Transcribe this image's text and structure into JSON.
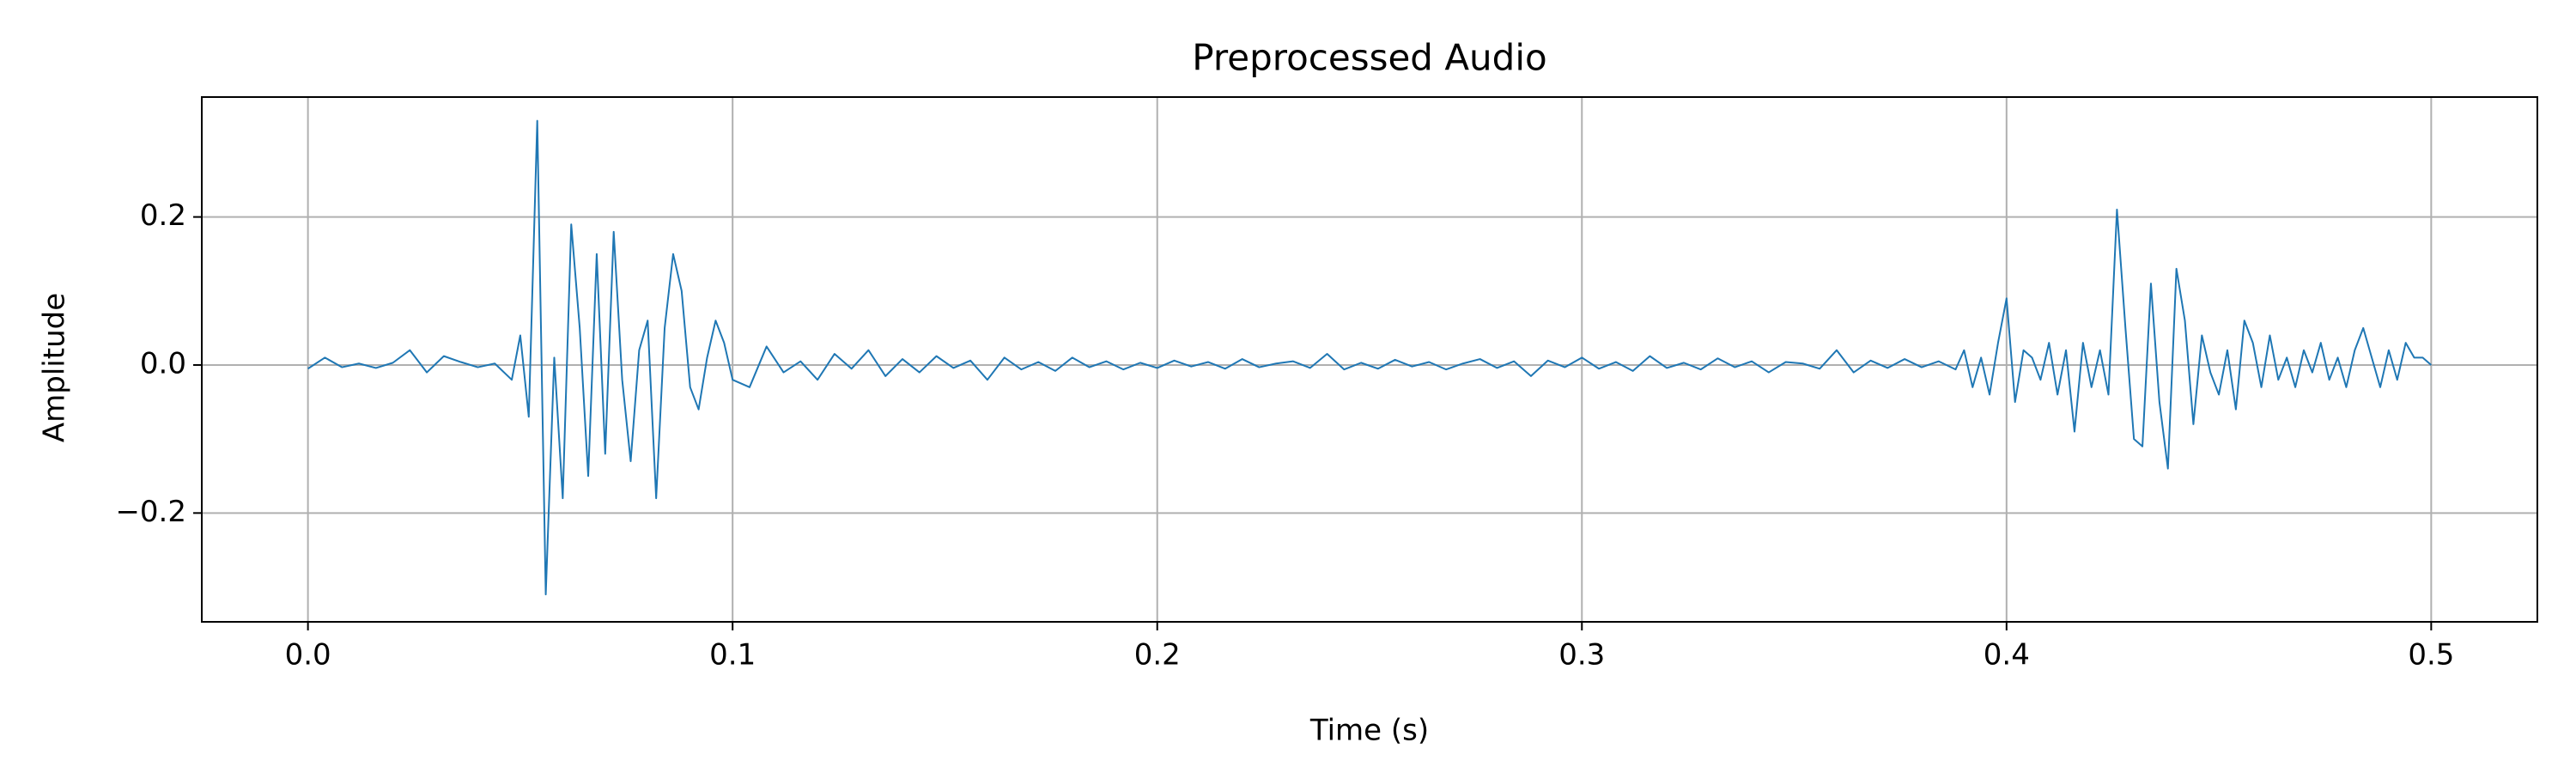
{
  "chart_data": {
    "type": "line",
    "title": "Preprocessed Audio",
    "xlabel": "Time (s)",
    "ylabel": "Amplitude",
    "xlim": [
      -0.025,
      0.525
    ],
    "ylim": [
      -0.347,
      0.362
    ],
    "xticks": [
      {
        "value": 0,
        "label": "0.0"
      },
      0.1,
      0.2,
      0.3,
      0.4,
      0.5
    ],
    "yticks": [
      {
        "value": -0.2,
        "label": "−0.2"
      },
      {
        "value": 0,
        "label": "0.0"
      },
      0.2
    ],
    "grid": true,
    "x": [
      0,
      0.004,
      0.008,
      0.012,
      0.016,
      0.02,
      0.024,
      0.028,
      0.032,
      0.036,
      0.04,
      0.044,
      0.048,
      0.05,
      0.052,
      0.054,
      0.056,
      0.058,
      0.06,
      0.062,
      0.064,
      0.066,
      0.068,
      0.07,
      0.072,
      0.074,
      0.076,
      0.078,
      0.08,
      0.082,
      0.084,
      0.086,
      0.088,
      0.09,
      0.092,
      0.094,
      0.096,
      0.098,
      0.1,
      0.104,
      0.108,
      0.112,
      0.116,
      0.12,
      0.124,
      0.128,
      0.132,
      0.136,
      0.14,
      0.144,
      0.148,
      0.152,
      0.156,
      0.16,
      0.164,
      0.168,
      0.172,
      0.176,
      0.18,
      0.184,
      0.188,
      0.192,
      0.196,
      0.2,
      0.204,
      0.208,
      0.212,
      0.216,
      0.22,
      0.224,
      0.228,
      0.232,
      0.236,
      0.24,
      0.244,
      0.248,
      0.252,
      0.256,
      0.26,
      0.264,
      0.268,
      0.272,
      0.276,
      0.28,
      0.284,
      0.288,
      0.292,
      0.296,
      0.3,
      0.304,
      0.308,
      0.312,
      0.316,
      0.32,
      0.324,
      0.328,
      0.332,
      0.336,
      0.34,
      0.344,
      0.348,
      0.352,
      0.356,
      0.36,
      0.364,
      0.368,
      0.372,
      0.376,
      0.38,
      0.384,
      0.388,
      0.39,
      0.392,
      0.394,
      0.396,
      0.398,
      0.4,
      0.402,
      0.404,
      0.406,
      0.408,
      0.41,
      0.412,
      0.414,
      0.416,
      0.418,
      0.42,
      0.422,
      0.424,
      0.426,
      0.428,
      0.43,
      0.432,
      0.434,
      0.436,
      0.438,
      0.44,
      0.442,
      0.444,
      0.446,
      0.448,
      0.45,
      0.452,
      0.454,
      0.456,
      0.458,
      0.46,
      0.462,
      0.464,
      0.466,
      0.468,
      0.47,
      0.472,
      0.474,
      0.476,
      0.478,
      0.48,
      0.482,
      0.484,
      0.486,
      0.488,
      0.49,
      0.492,
      0.494,
      0.496,
      0.498,
      0.5
    ],
    "series": [
      {
        "color": "#1f77b4",
        "values": [
          -0.005,
          0.01,
          -0.003,
          0.002,
          -0.004,
          0.003,
          0.02,
          -0.01,
          0.012,
          0.004,
          -0.003,
          0.002,
          -0.02,
          0.04,
          -0.07,
          0.33,
          -0.31,
          0.01,
          -0.18,
          0.19,
          0.05,
          -0.15,
          0.15,
          -0.12,
          0.18,
          -0.02,
          -0.13,
          0.02,
          0.06,
          -0.18,
          0.05,
          0.15,
          0.1,
          -0.03,
          -0.06,
          0.01,
          0.06,
          0.03,
          -0.02,
          -0.03,
          0.025,
          -0.01,
          0.005,
          -0.02,
          0.015,
          -0.005,
          0.02,
          -0.015,
          0.008,
          -0.01,
          0.012,
          -0.004,
          0.006,
          -0.02,
          0.01,
          -0.006,
          0.004,
          -0.008,
          0.01,
          -0.003,
          0.005,
          -0.006,
          0.003,
          -0.004,
          0.006,
          -0.002,
          0.004,
          -0.005,
          0.008,
          -0.003,
          0.002,
          0.005,
          -0.004,
          0.015,
          -0.006,
          0.003,
          -0.005,
          0.007,
          -0.002,
          0.004,
          -0.006,
          0.002,
          0.008,
          -0.004,
          0.005,
          -0.015,
          0.006,
          -0.003,
          0.01,
          -0.005,
          0.004,
          -0.008,
          0.012,
          -0.004,
          0.003,
          -0.006,
          0.009,
          -0.003,
          0.005,
          -0.01,
          0.004,
          0.002,
          -0.005,
          0.02,
          -0.01,
          0.006,
          -0.004,
          0.008,
          -0.003,
          0.005,
          -0.006,
          0.02,
          -0.03,
          0.01,
          -0.04,
          0.03,
          0.09,
          -0.05,
          0.02,
          0.01,
          -0.02,
          0.03,
          -0.04,
          0.02,
          -0.09,
          0.03,
          -0.03,
          0.02,
          -0.04,
          0.21,
          0.05,
          -0.1,
          -0.11,
          0.11,
          -0.05,
          -0.14,
          0.13,
          0.06,
          -0.08,
          0.04,
          -0.01,
          -0.04,
          0.02,
          -0.06,
          0.06,
          0.03,
          -0.03,
          0.04,
          -0.02,
          0.01,
          -0.03,
          0.02,
          -0.01,
          0.03,
          -0.02,
          0.01,
          -0.03,
          0.02,
          0.05,
          0.01,
          -0.03,
          0.02,
          -0.02,
          0.03,
          0.01,
          0.01,
          0.0
        ]
      }
    ]
  }
}
